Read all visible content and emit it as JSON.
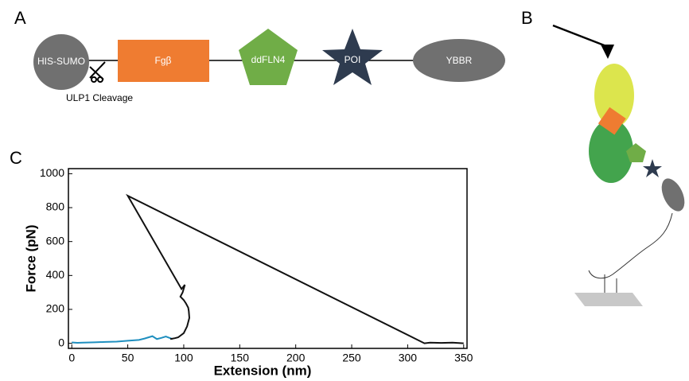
{
  "panels": {
    "a": "A",
    "b": "B",
    "c": "C"
  },
  "construct": {
    "nodes": [
      "HIS-SUMO",
      "Fgβ",
      "ddFLN4",
      "POI",
      "YBBR"
    ],
    "cleavage": "ULP1 Cleavage"
  },
  "chart_data": {
    "type": "line",
    "xlabel": "Extension (nm)",
    "ylabel": "Force (pN)",
    "xlim": [
      -3,
      353
    ],
    "ylim": [
      -30,
      1030
    ],
    "xticks": [
      0,
      50,
      100,
      150,
      200,
      250,
      300,
      350
    ],
    "yticks": [
      0,
      200,
      400,
      600,
      800,
      1000
    ],
    "series": [
      {
        "color": "#1f8fbf",
        "x": [
          0,
          5,
          10,
          20,
          30,
          40,
          50,
          60,
          65,
          70,
          72,
          76,
          80,
          84,
          88,
          90
        ],
        "values": [
          5,
          3,
          4,
          6,
          8,
          10,
          15,
          20,
          28,
          38,
          42,
          25,
          32,
          40,
          30,
          25
        ]
      },
      {
        "color": "#111111",
        "x": [
          88,
          92,
          95,
          100,
          103,
          105,
          104.5,
          104,
          102,
          100,
          97,
          99,
          101,
          98,
          50,
          315,
          320,
          330,
          340,
          350
        ],
        "values": [
          25,
          30,
          35,
          60,
          100,
          150,
          190,
          210,
          235,
          255,
          275,
          300,
          345,
          320,
          870,
          0,
          4,
          2,
          4,
          0
        ]
      }
    ]
  }
}
